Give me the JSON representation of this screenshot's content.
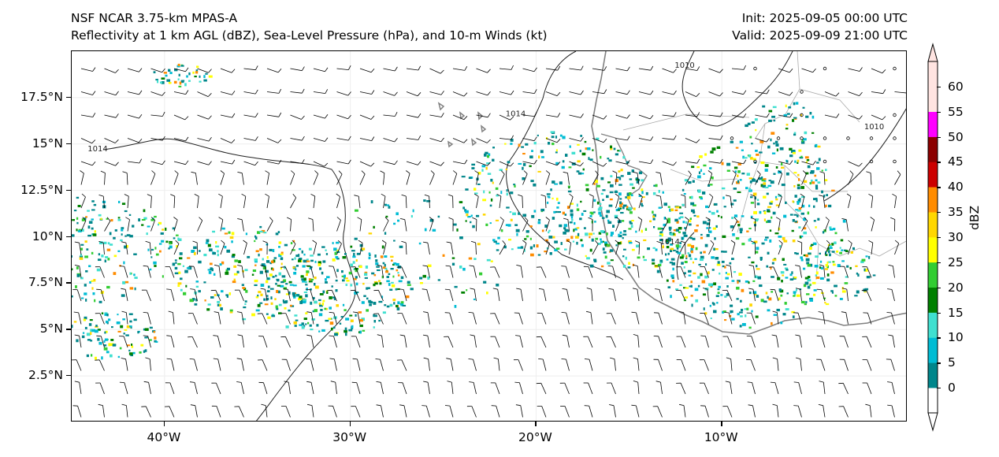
{
  "header": {
    "left_line1": "NSF NCAR 3.75-km MPAS-A",
    "left_line2": "Reflectivity at 1 km AGL (dBZ), Sea-Level Pressure (hPa), and 10-m Winds (kt)",
    "right_line1": "Init: 2025-09-05 00:00 UTC",
    "right_line2": "Valid: 2025-09-09 21:00 UTC"
  },
  "axes": {
    "lon_range": [
      -45,
      0
    ],
    "lat_range": [
      0,
      20
    ],
    "y_ticks": [
      {
        "value": 2.5,
        "label": "2.5°N"
      },
      {
        "value": 5,
        "label": "5°N"
      },
      {
        "value": 7.5,
        "label": "7.5°N"
      },
      {
        "value": 10,
        "label": "10°N"
      },
      {
        "value": 12.5,
        "label": "12.5°N"
      },
      {
        "value": 15,
        "label": "15°N"
      },
      {
        "value": 17.5,
        "label": "17.5°N"
      }
    ],
    "x_ticks": [
      {
        "value": -40,
        "label": "40°W"
      },
      {
        "value": -30,
        "label": "30°W"
      },
      {
        "value": -20,
        "label": "20°W"
      },
      {
        "value": -10,
        "label": "10°W"
      }
    ]
  },
  "isobar_labels": [
    {
      "text": "1014",
      "lon": -43.6,
      "lat": 14.6
    },
    {
      "text": "1014",
      "lon": -21.1,
      "lat": 16.5
    },
    {
      "text": "1010",
      "lon": -12.0,
      "lat": 19.1
    },
    {
      "text": "1010",
      "lon": -1.8,
      "lat": 15.8
    },
    {
      "text": "1014",
      "lon": -12.8,
      "lat": 9.6
    }
  ],
  "colorbar": {
    "label": "dBZ",
    "ticks": [
      "0",
      "5",
      "10",
      "15",
      "20",
      "25",
      "30",
      "35",
      "40",
      "45",
      "50",
      "55",
      "60"
    ],
    "colors": [
      "#ffffff",
      "#00868b",
      "#00bcd4",
      "#40e0d0",
      "#008000",
      "#32cd32",
      "#ffff00",
      "#ffd700",
      "#ff8c00",
      "#cc0000",
      "#8b0000",
      "#ff00ff",
      "#ffe4e1",
      "#ffe4e1"
    ],
    "under_color": "#ffffff",
    "over_color": "#ffe4e1"
  },
  "colors": {
    "coastline": "#808080",
    "isobar": "#222222",
    "border": "#aaaaaa",
    "barb": "#000000"
  }
}
